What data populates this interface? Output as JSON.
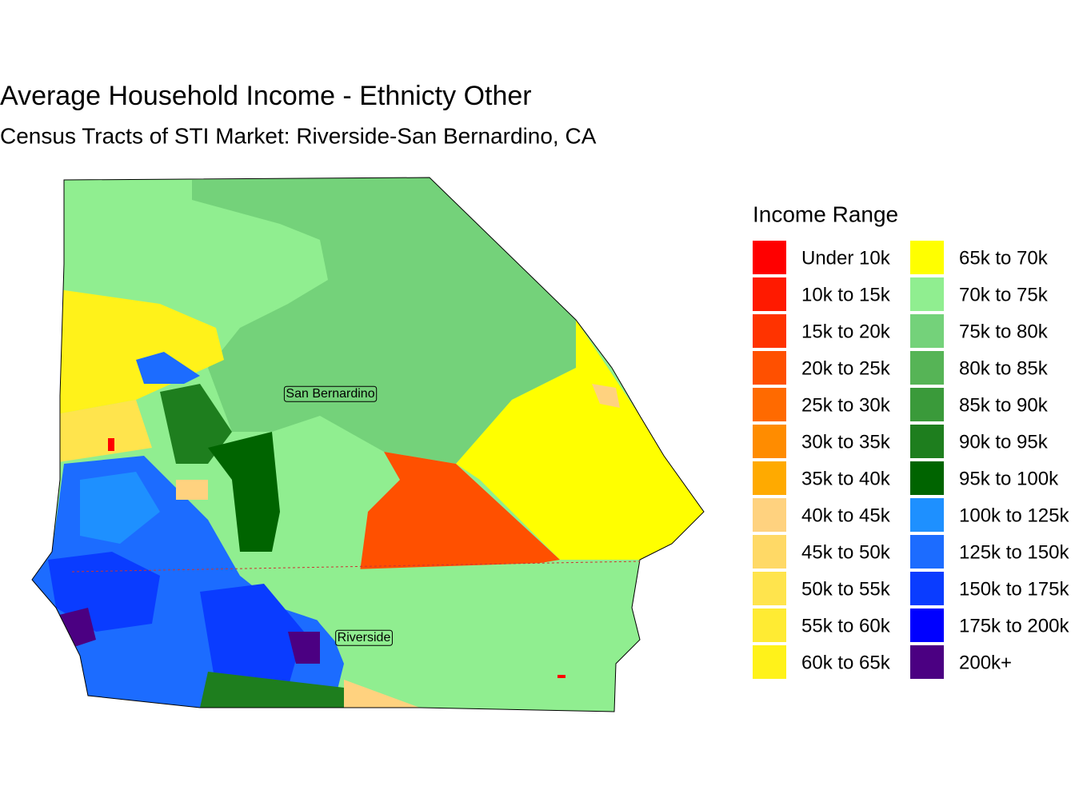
{
  "title": "Average Household Income - Ethnicty Other",
  "subtitle": "Census Tracts of STI Market: Riverside-San Bernardino, CA",
  "legend": {
    "title": "Income Range",
    "items": [
      {
        "label": "Under 10k",
        "color": "#ff0000"
      },
      {
        "label": "10k to 15k",
        "color": "#ff1a00"
      },
      {
        "label": "15k to 20k",
        "color": "#ff3300"
      },
      {
        "label": "20k to 25k",
        "color": "#ff5000"
      },
      {
        "label": "25k to 30k",
        "color": "#ff6a00"
      },
      {
        "label": "30k to 35k",
        "color": "#ff8c00"
      },
      {
        "label": "35k to 40k",
        "color": "#ffaa00"
      },
      {
        "label": "40k to 45k",
        "color": "#ffd27f"
      },
      {
        "label": "45k to 50k",
        "color": "#ffd966"
      },
      {
        "label": "50k to 55k",
        "color": "#ffe44d"
      },
      {
        "label": "55k to 60k",
        "color": "#ffeb33"
      },
      {
        "label": "60k to 65k",
        "color": "#fff21a"
      },
      {
        "label": "65k to 70k",
        "color": "#ffff00"
      },
      {
        "label": "70k to 75k",
        "color": "#90ee90"
      },
      {
        "label": "75k to 80k",
        "color": "#74d27a"
      },
      {
        "label": "80k to 85k",
        "color": "#56b456"
      },
      {
        "label": "85k to 90k",
        "color": "#3a9a3a"
      },
      {
        "label": "90k to 95k",
        "color": "#1e7e1e"
      },
      {
        "label": "95k to 100k",
        "color": "#006400"
      },
      {
        "label": "100k to 125k",
        "color": "#1e90ff"
      },
      {
        "label": "125k to 150k",
        "color": "#1c6cff"
      },
      {
        "label": "150k to 175k",
        "color": "#0a3cff"
      },
      {
        "label": "175k to 200k",
        "color": "#0000ff"
      },
      {
        "label": "200k+",
        "color": "#4b0082"
      }
    ]
  },
  "labels": [
    "San Bernardino",
    "Riverside"
  ]
}
